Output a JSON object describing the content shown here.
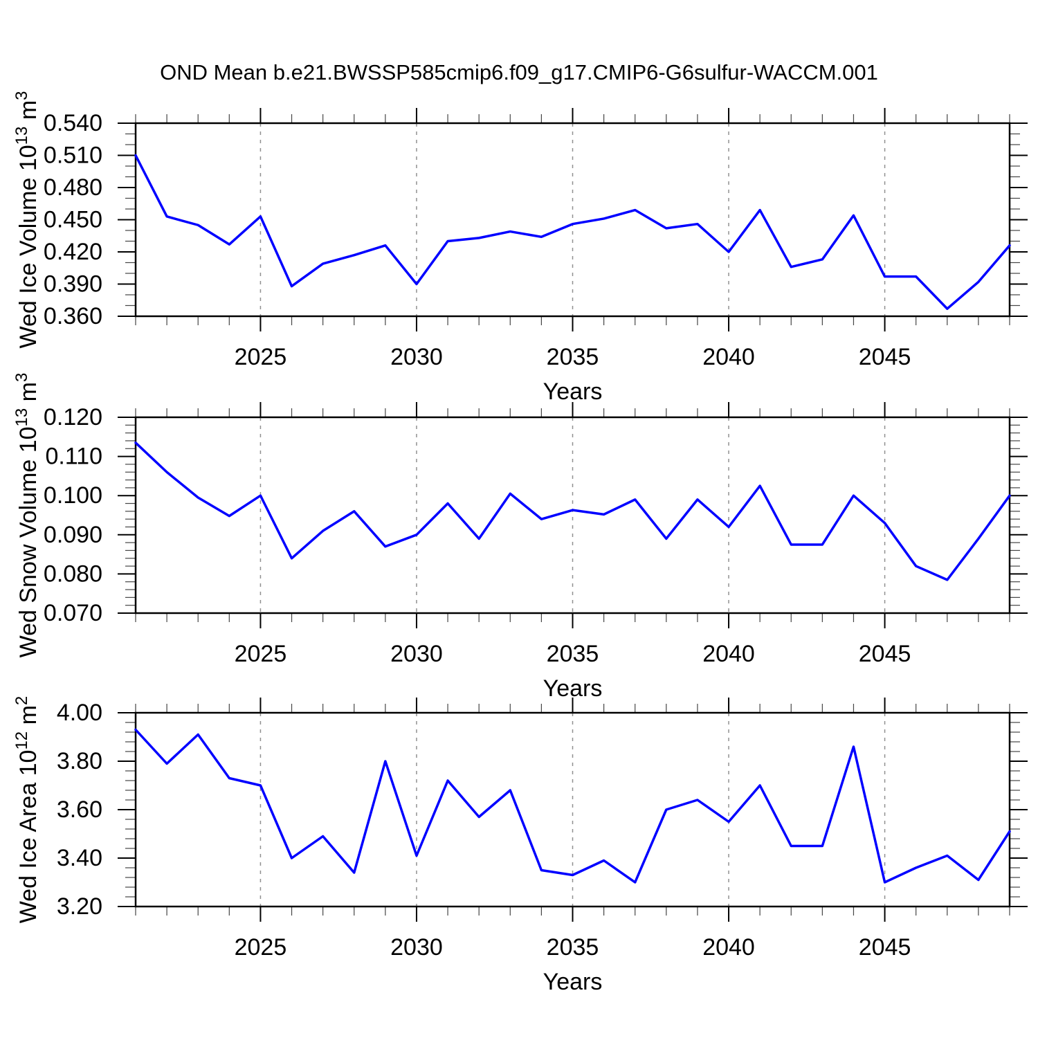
{
  "chart_data": {
    "type": "line",
    "title": "OND Mean b.e21.BWSSP585cmip6.f09_g17.CMIP6-G6sulfur-WACCM.001",
    "legend": "none",
    "grid": "vertical-dashed-at-x-major-ticks",
    "x_axis": {
      "label": "Years",
      "lim": [
        2021,
        2049
      ],
      "major_ticks": [
        2025,
        2030,
        2035,
        2040,
        2045
      ],
      "minor_step": 1,
      "years": [
        2021,
        2022,
        2023,
        2024,
        2025,
        2026,
        2027,
        2028,
        2029,
        2030,
        2031,
        2032,
        2033,
        2034,
        2035,
        2036,
        2037,
        2038,
        2039,
        2040,
        2041,
        2042,
        2043,
        2044,
        2045,
        2046,
        2047,
        2048,
        2049
      ]
    },
    "panels": [
      {
        "name": "ice-volume",
        "ylabel": "Wed Ice Volume 10^13 m^3",
        "ylabel_parts": [
          {
            "t": "Wed Ice Volume 10"
          },
          {
            "t": "13",
            "sup": true
          },
          {
            "t": " m"
          },
          {
            "t": "3",
            "sup": true
          }
        ],
        "ylim": [
          0.36,
          0.54
        ],
        "ytick_values": [
          0.36,
          0.39,
          0.42,
          0.45,
          0.48,
          0.51,
          0.54
        ],
        "ytick_labels": [
          "0.360",
          "0.390",
          "0.420",
          "0.450",
          "0.480",
          "0.510",
          "0.540"
        ],
        "y_minor_step": 0.01,
        "values": [
          0.51,
          0.453,
          0.445,
          0.427,
          0.453,
          0.388,
          0.409,
          0.417,
          0.426,
          0.39,
          0.43,
          0.433,
          0.439,
          0.434,
          0.446,
          0.451,
          0.459,
          0.442,
          0.446,
          0.42,
          0.459,
          0.406,
          0.413,
          0.454,
          0.397,
          0.397,
          0.367,
          0.392,
          0.426
        ]
      },
      {
        "name": "snow-volume",
        "ylabel": "Wed Snow Volume 10^13 m^3",
        "ylabel_parts": [
          {
            "t": "Wed Snow Volume 10"
          },
          {
            "t": "13",
            "sup": true
          },
          {
            "t": " m"
          },
          {
            "t": "3",
            "sup": true
          }
        ],
        "ylim": [
          0.07,
          0.12
        ],
        "ytick_values": [
          0.07,
          0.08,
          0.09,
          0.1,
          0.11,
          0.12
        ],
        "ytick_labels": [
          "0.070",
          "0.080",
          "0.090",
          "0.100",
          "0.110",
          "0.120"
        ],
        "y_minor_step": 0.002,
        "values": [
          0.1135,
          0.106,
          0.0995,
          0.0948,
          0.1,
          0.084,
          0.091,
          0.096,
          0.087,
          0.09,
          0.098,
          0.089,
          0.1005,
          0.094,
          0.0963,
          0.0952,
          0.099,
          0.089,
          0.099,
          0.092,
          0.1025,
          0.0875,
          0.0875,
          0.1,
          0.093,
          0.082,
          0.0785,
          0.089,
          0.1
        ]
      },
      {
        "name": "ice-area",
        "ylabel": "Wed Ice Area 10^12 m^2",
        "ylabel_parts": [
          {
            "t": "Wed Ice Area 10"
          },
          {
            "t": "12",
            "sup": true
          },
          {
            "t": " m"
          },
          {
            "t": "2",
            "sup": true
          }
        ],
        "ylim": [
          3.2,
          4.0
        ],
        "ytick_values": [
          3.2,
          3.4,
          3.6,
          3.8,
          4.0
        ],
        "ytick_labels": [
          "3.20",
          "3.40",
          "3.60",
          "3.80",
          "4.00"
        ],
        "y_minor_step": 0.04,
        "values": [
          3.93,
          3.79,
          3.91,
          3.73,
          3.7,
          3.4,
          3.49,
          3.34,
          3.8,
          3.41,
          3.72,
          3.57,
          3.68,
          3.35,
          3.33,
          3.39,
          3.3,
          3.6,
          3.64,
          3.55,
          3.7,
          3.45,
          3.45,
          3.86,
          3.3,
          3.36,
          3.41,
          3.31,
          3.51
        ]
      }
    ],
    "style": {
      "line_color": "#0000ff",
      "grid_color": "#909090",
      "axis_color": "#000000",
      "minor_tick_color": "#444444",
      "background": "#ffffff"
    }
  }
}
